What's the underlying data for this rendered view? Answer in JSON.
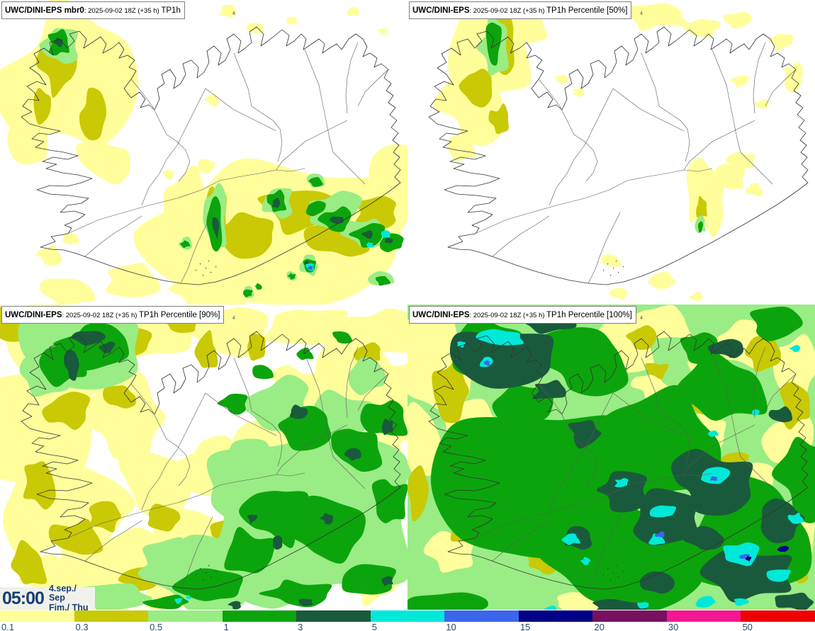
{
  "panels": [
    {
      "model": "UWC/DINI-EPS mbr0",
      "run": ": 2025-09-02 18Z (+35 h) ",
      "param": "TP1h",
      "marker": "4"
    },
    {
      "model": "UWC/DINI-EPS",
      "run": ": 2025-09-02 18Z (+35 h) ",
      "param": "TP1h Percentile [50%]",
      "marker": "4"
    },
    {
      "model": "UWC/DINI-EPS",
      "run": ": 2025-09-02 18Z (+35 h) ",
      "param": "TP1h Percentile [90%]",
      "marker": "4"
    },
    {
      "model": "UWC/DINI-EPS",
      "run": ": 2025-09-02 18Z (+35 h) ",
      "param": "TP1h Percentile [100%]",
      "marker": "4"
    }
  ],
  "clock": {
    "time": "05:00",
    "date": "4.sep./ Sep",
    "day": "Fim./ Thu"
  },
  "colorbar": {
    "label_color": "#274a6d",
    "levels": [
      {
        "label": "0.1",
        "color": "#fffe9b"
      },
      {
        "label": "0.3",
        "color": "#c9c905"
      },
      {
        "label": "0.5",
        "color": "#9aec85"
      },
      {
        "label": "1",
        "color": "#0ca40c"
      },
      {
        "label": "3",
        "color": "#1a5a3c"
      },
      {
        "label": "5",
        "color": "#00e8d8"
      },
      {
        "label": "10",
        "color": "#3b66eb"
      },
      {
        "label": "15",
        "color": "#010185"
      },
      {
        "label": "20",
        "color": "#77115f"
      },
      {
        "label": "30",
        "color": "#f31792"
      },
      {
        "label": "50",
        "color": "#ee0000"
      }
    ]
  }
}
